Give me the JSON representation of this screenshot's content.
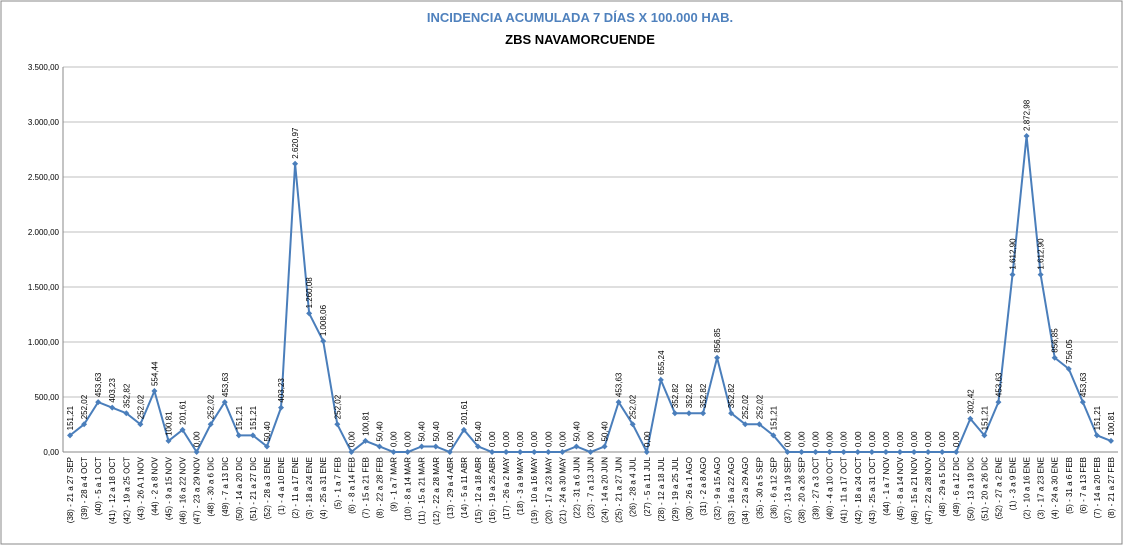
{
  "chart_data": {
    "type": "line",
    "title": "INCIDENCIA ACUMULADA 7 DÍAS X 100.000 HAB.",
    "subtitle": "ZBS NAVAMORCUENDE",
    "categories": [
      "(38) - 21 a 27 SEP",
      "(39) - 28 a 4 OCT",
      "(40) - 5 a 1 OCT",
      "(41) - 12 a 18 OCT",
      "(42) - 19 a 25 OCT",
      "(43) - 26 A 1 NOV",
      "(44) - 2 a 8 NOV",
      "(45) - 9 a 15 NOV",
      "(46) - 16 a 22 NOV",
      "(47) - 23 a 29 NOV",
      "(48) - 30 a 6 DIC",
      "(49) - 7 a 13 DIC",
      "(50) - 14 a 20 DIC",
      "(51) - 21 a 27 DIC",
      "(52) - 28 a 3 ENE",
      "(1) - 4 a 10 ENE",
      "(2) - 11 a 17 ENE",
      "(3) - 18 a 24 ENE",
      "(4) - 25 a 31 ENE",
      "(5) - 1 a 7 FEB",
      "(6) - 8 a 14 FEB",
      "(7) - 15 a 21 FEB",
      "(8) - 22 a 28 FEB",
      "(9) - 1 a 7 MAR",
      "(10) - 8 a 14 MAR",
      "(11) - 15 a 21 MAR",
      "(12) - 22 a 28 MAR",
      "(13) - 29 a 4 ABR",
      "(14) - 5 a 11 ABR",
      "(15) - 12 a 18 ABR",
      "(16) - 19 a 25 ABR",
      "(17) - 26 a 2 MAY",
      "(18) - 3 a 9 MAY",
      "(19) - 10 a 16 MAY",
      "(20) - 17 a 23 MAY",
      "(21) - 24 a 30 MAY",
      "(22) - 31 a 6 JUN",
      "(23) - 7 a 13 JUN",
      "(24) - 14 a 20 JUN",
      "(25) - 21 a 27 JUN",
      "(26) - 28 a 4 JUL",
      "(27) - 5 a 11 JUL",
      "(28) - 12 a 18 JUL",
      "(29) - 19 a 25 JUL",
      "(30) - 26 a 1 AGO",
      "(31) - 2 a 8 AGO",
      "(32) - 9 a 15 AGO",
      "(33) - 16 a 22 AGO",
      "(34) - 23 a 29 AGO",
      "(35) - 30 a 5 SEP",
      "(36) - 6 a 12 SEP",
      "(37) - 13 a 19 SEP",
      "(38) - 20 a 26 SEP",
      "(39) - 27 a 3 OCT",
      "(40) - 4 a 10 OCT",
      "(41) - 11 a 17 OCT",
      "(42) - 18 a 24 OCT",
      "(43) - 25 a 31 OCT",
      "(44) - 1 a 7 NOV",
      "(45) - 8 a 14 NOV",
      "(46) - 15 a 21 NOV",
      "(47) - 22 a 28 NOV",
      "(48) - 29 a 5 DIC",
      "(49) - 6 a 12 DIC",
      "(50) - 13 a 19 DIC",
      "(51) - 20 a 26 DIC",
      "(52) - 27 a 2 ENE",
      "(1) - 3 a 9 ENE",
      "(2) - 10 a 16 ENE",
      "(3) - 17 a 23 ENE",
      "(4) - 24 a 30 ENE",
      "(5) - 31 a 6 FEB",
      "(6) - 7 a 13 FEB",
      "(7) - 14 a 20 FEB",
      "(8) - 21 a 27 FEB"
    ],
    "values": [
      151.21,
      252.02,
      453.63,
      403.23,
      352.82,
      252.02,
      554.44,
      100.81,
      201.61,
      0,
      252.02,
      453.63,
      151.21,
      151.21,
      50.4,
      403.23,
      2620.97,
      1260.08,
      1008.06,
      252.02,
      0,
      100.81,
      50.4,
      0,
      0,
      50.4,
      50.4,
      0,
      201.61,
      50.4,
      0,
      0,
      0,
      0,
      0,
      0,
      50.4,
      0,
      50.4,
      453.63,
      252.02,
      0,
      655.24,
      352.82,
      352.82,
      352.82,
      856.85,
      352.82,
      252.02,
      252.02,
      151.21,
      0,
      0,
      0,
      0,
      0,
      0,
      0,
      0,
      0,
      0,
      0,
      0,
      0,
      302.42,
      151.21,
      453.63,
      1612.9,
      2872.98,
      1612.9,
      856.85,
      756.05,
      453.63,
      151.21,
      100.81
    ],
    "value_labels": [
      "151,21",
      "252,02",
      "453,63",
      "403,23",
      "352,82",
      "252,02",
      "554,44",
      "100,81",
      "201,61",
      "0,00",
      "252,02",
      "453,63",
      "151,21",
      "151,21",
      "50,40",
      "403,23",
      "2.620,97",
      "1.260,08",
      "1.008,06",
      "252,02",
      "0,00",
      "100,81",
      "50,40",
      "0,00",
      "0,00",
      "50,40",
      "50,40",
      "0,00",
      "201,61",
      "50,40",
      "0,00",
      "0,00",
      "0,00",
      "0,00",
      "0,00",
      "0,00",
      "50,40",
      "0,00",
      "50,40",
      "453,63",
      "252,02",
      "0,00",
      "655,24",
      "352,82",
      "352,82",
      "352,82",
      "856,85",
      "352,82",
      "252,02",
      "252,02",
      "151,21",
      "0,00",
      "0,00",
      "0,00",
      "0,00",
      "0,00",
      "0,00",
      "0,00",
      "0,00",
      "0,00",
      "0,00",
      "0,00",
      "0,00",
      "0,00",
      "302,42",
      "151,21",
      "453,63",
      "1.612,90",
      "2.872,98",
      "1.612,90",
      "856,85",
      "756,05",
      "453,63",
      "151,21",
      "100,81"
    ],
    "color": "#4a7ebb",
    "ylim": [
      0,
      3500
    ],
    "yticks": [
      {
        "value": 0,
        "label": "0,00"
      },
      {
        "value": 500,
        "label": "500,00"
      },
      {
        "value": 1000,
        "label": "1.000,00"
      },
      {
        "value": 1500,
        "label": "1.500,00"
      },
      {
        "value": 2000,
        "label": "2.000,00"
      },
      {
        "value": 2500,
        "label": "2.500,00"
      },
      {
        "value": 3000,
        "label": "3.000,00"
      },
      {
        "value": 3500,
        "label": "3.500,00"
      }
    ],
    "grid": true
  }
}
